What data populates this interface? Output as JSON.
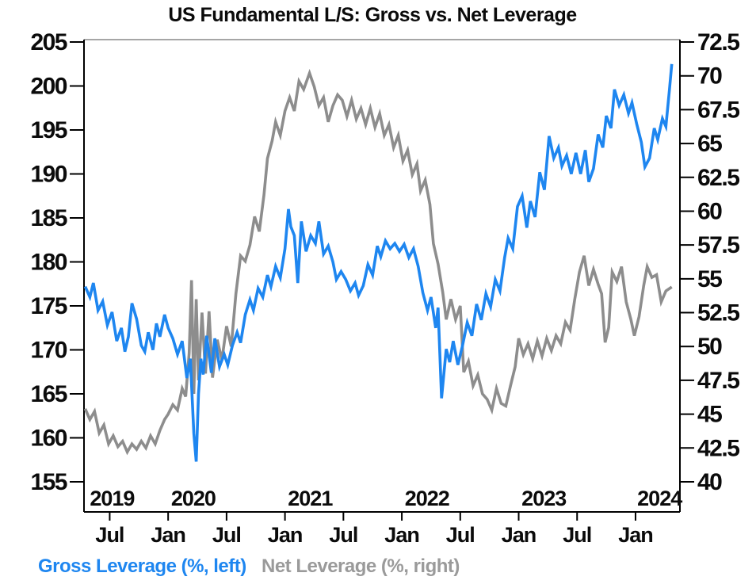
{
  "chart_data": {
    "type": "line",
    "title": "US Fundamental L/S: Gross vs. Net Leverage",
    "grid": false,
    "legend_position": "bottom-left",
    "x_range_years": [
      2019.28,
      2024.38
    ],
    "left_axis": {
      "side": "left",
      "min": 155,
      "max": 205,
      "tick_values": [
        205,
        200,
        195,
        190,
        185,
        180,
        175,
        170,
        165,
        160,
        155
      ],
      "tick_labels": [
        "205",
        "200",
        "195",
        "190",
        "185",
        "180",
        "175",
        "170",
        "165",
        "160",
        "155"
      ]
    },
    "right_axis": {
      "side": "right",
      "min": 40,
      "max": 72.5,
      "tick_values": [
        72.5,
        70,
        67.5,
        65,
        62.5,
        60,
        57.5,
        55,
        52.5,
        50,
        47.5,
        45,
        42.5,
        40
      ],
      "tick_labels": [
        "72.5",
        "70",
        "67.5",
        "65",
        "62.5",
        "60",
        "57.5",
        "55",
        "52.5",
        "50",
        "47.5",
        "45",
        "42.5",
        "40"
      ]
    },
    "x_axis": {
      "month_tick_values": [
        2019.5,
        2020.0,
        2020.5,
        2021.0,
        2021.5,
        2022.0,
        2022.5,
        2023.0,
        2023.5,
        2024.0
      ],
      "month_tick_labels": [
        "Jul",
        "Jan",
        "Jul",
        "Jan",
        "Jul",
        "Jan",
        "Jul",
        "Jan",
        "Jul",
        "Jan"
      ],
      "year_label_positions": [
        2019.52,
        2020.215,
        2021.215,
        2022.215,
        2023.215,
        2024.205
      ],
      "year_labels": [
        "2019",
        "2020",
        "2021",
        "2022",
        "2023",
        "2024"
      ]
    },
    "colors": {
      "gross": "#1e86f0",
      "net": "#8d8d8d",
      "legend_net_text": "#9a9a9a",
      "axis": "#000000",
      "top_border": "#888888"
    },
    "series": [
      {
        "name": "Gross Leverage (%, left)",
        "axis": "left",
        "color": "#1e86f0",
        "points": [
          [
            2019.29,
            177.2
          ],
          [
            2019.33,
            176.0
          ],
          [
            2019.36,
            177.6
          ],
          [
            2019.4,
            174.5
          ],
          [
            2019.44,
            175.5
          ],
          [
            2019.48,
            172.8
          ],
          [
            2019.52,
            174.3
          ],
          [
            2019.56,
            171.0
          ],
          [
            2019.6,
            172.5
          ],
          [
            2019.63,
            169.8
          ],
          [
            2019.66,
            171.5
          ],
          [
            2019.69,
            175.3
          ],
          [
            2019.73,
            173.5
          ],
          [
            2019.77,
            170.5
          ],
          [
            2019.8,
            169.8
          ],
          [
            2019.83,
            172.0
          ],
          [
            2019.87,
            170.0
          ],
          [
            2019.9,
            173.0
          ],
          [
            2019.93,
            171.5
          ],
          [
            2019.97,
            174.0
          ],
          [
            2020.0,
            172.5
          ],
          [
            2020.04,
            171.3
          ],
          [
            2020.08,
            169.5
          ],
          [
            2020.12,
            171.0
          ],
          [
            2020.16,
            166.8
          ],
          [
            2020.19,
            169.0
          ],
          [
            2020.22,
            160.5
          ],
          [
            2020.24,
            157.3
          ],
          [
            2020.26,
            165.0
          ],
          [
            2020.28,
            169.0
          ],
          [
            2020.3,
            167.2
          ],
          [
            2020.33,
            171.6
          ],
          [
            2020.37,
            167.4
          ],
          [
            2020.4,
            171.3
          ],
          [
            2020.44,
            168.1
          ],
          [
            2020.48,
            169.5
          ],
          [
            2020.51,
            168.3
          ],
          [
            2020.55,
            170.5
          ],
          [
            2020.59,
            172.0
          ],
          [
            2020.62,
            170.8
          ],
          [
            2020.66,
            174.0
          ],
          [
            2020.7,
            175.7
          ],
          [
            2020.73,
            174.5
          ],
          [
            2020.77,
            177.0
          ],
          [
            2020.81,
            176.0
          ],
          [
            2020.85,
            178.5
          ],
          [
            2020.88,
            177.2
          ],
          [
            2020.92,
            179.5
          ],
          [
            2020.96,
            178.2
          ],
          [
            2021.0,
            181.5
          ],
          [
            2021.03,
            186.0
          ],
          [
            2021.05,
            184.0
          ],
          [
            2021.08,
            183.0
          ],
          [
            2021.11,
            177.6
          ],
          [
            2021.14,
            184.6
          ],
          [
            2021.18,
            181.2
          ],
          [
            2021.22,
            183.0
          ],
          [
            2021.26,
            182.1
          ],
          [
            2021.29,
            184.6
          ],
          [
            2021.33,
            180.9
          ],
          [
            2021.37,
            181.8
          ],
          [
            2021.41,
            180.0
          ],
          [
            2021.44,
            178.0
          ],
          [
            2021.48,
            178.9
          ],
          [
            2021.52,
            178.0
          ],
          [
            2021.56,
            176.7
          ],
          [
            2021.6,
            177.6
          ],
          [
            2021.63,
            176.2
          ],
          [
            2021.67,
            177.3
          ],
          [
            2021.71,
            179.7
          ],
          [
            2021.75,
            178.5
          ],
          [
            2021.79,
            181.8
          ],
          [
            2021.82,
            180.6
          ],
          [
            2021.86,
            182.4
          ],
          [
            2021.9,
            181.5
          ],
          [
            2021.94,
            182.1
          ],
          [
            2021.98,
            181.2
          ],
          [
            2022.02,
            182.0
          ],
          [
            2022.06,
            180.5
          ],
          [
            2022.1,
            181.5
          ],
          [
            2022.14,
            179.5
          ],
          [
            2022.18,
            176.5
          ],
          [
            2022.22,
            174.5
          ],
          [
            2022.25,
            176.0
          ],
          [
            2022.29,
            172.5
          ],
          [
            2022.31,
            174.8
          ],
          [
            2022.34,
            164.5
          ],
          [
            2022.38,
            170.1
          ],
          [
            2022.41,
            168.6
          ],
          [
            2022.44,
            171.0
          ],
          [
            2022.48,
            168.3
          ],
          [
            2022.52,
            170.5
          ],
          [
            2022.56,
            173.1
          ],
          [
            2022.6,
            171.6
          ],
          [
            2022.64,
            175.2
          ],
          [
            2022.68,
            173.4
          ],
          [
            2022.72,
            176.4
          ],
          [
            2022.76,
            174.9
          ],
          [
            2022.8,
            178.0
          ],
          [
            2022.84,
            176.7
          ],
          [
            2022.88,
            180.5
          ],
          [
            2022.91,
            182.7
          ],
          [
            2022.95,
            181.5
          ],
          [
            2022.99,
            186.3
          ],
          [
            2023.03,
            187.5
          ],
          [
            2023.07,
            183.9
          ],
          [
            2023.1,
            186.9
          ],
          [
            2023.14,
            185.1
          ],
          [
            2023.18,
            190.2
          ],
          [
            2023.22,
            188.2
          ],
          [
            2023.26,
            194.3
          ],
          [
            2023.3,
            191.8
          ],
          [
            2023.34,
            193.0
          ],
          [
            2023.37,
            190.9
          ],
          [
            2023.41,
            192.1
          ],
          [
            2023.45,
            190.0
          ],
          [
            2023.49,
            192.4
          ],
          [
            2023.53,
            190.0
          ],
          [
            2023.57,
            192.7
          ],
          [
            2023.6,
            189.1
          ],
          [
            2023.64,
            190.6
          ],
          [
            2023.68,
            194.5
          ],
          [
            2023.72,
            193.0
          ],
          [
            2023.75,
            196.6
          ],
          [
            2023.79,
            195.2
          ],
          [
            2023.82,
            199.6
          ],
          [
            2023.86,
            197.8
          ],
          [
            2023.9,
            199.0
          ],
          [
            2023.94,
            196.9
          ],
          [
            2023.97,
            198.1
          ],
          [
            2024.01,
            195.7
          ],
          [
            2024.05,
            193.6
          ],
          [
            2024.08,
            190.8
          ],
          [
            2024.12,
            191.8
          ],
          [
            2024.16,
            195.2
          ],
          [
            2024.19,
            193.9
          ],
          [
            2024.23,
            196.3
          ],
          [
            2024.26,
            195.4
          ],
          [
            2024.29,
            199.5
          ],
          [
            2024.31,
            202.5
          ]
        ]
      },
      {
        "name": "Net Leverage (%, right)",
        "axis": "right",
        "color": "#8d8d8d",
        "points": [
          [
            2019.29,
            45.4
          ],
          [
            2019.33,
            44.6
          ],
          [
            2019.37,
            45.2
          ],
          [
            2019.41,
            43.6
          ],
          [
            2019.45,
            44.2
          ],
          [
            2019.49,
            42.8
          ],
          [
            2019.53,
            43.4
          ],
          [
            2019.57,
            42.6
          ],
          [
            2019.61,
            43.0
          ],
          [
            2019.65,
            42.2
          ],
          [
            2019.69,
            42.8
          ],
          [
            2019.73,
            42.4
          ],
          [
            2019.77,
            43.0
          ],
          [
            2019.81,
            42.5
          ],
          [
            2019.85,
            43.4
          ],
          [
            2019.89,
            42.8
          ],
          [
            2019.93,
            43.8
          ],
          [
            2019.97,
            44.6
          ],
          [
            2020.0,
            45.0
          ],
          [
            2020.04,
            45.7
          ],
          [
            2020.08,
            45.3
          ],
          [
            2020.12,
            46.9
          ],
          [
            2020.15,
            46.3
          ],
          [
            2020.18,
            49.5
          ],
          [
            2020.2,
            54.9
          ],
          [
            2020.22,
            46.5
          ],
          [
            2020.24,
            53.5
          ],
          [
            2020.26,
            47.5
          ],
          [
            2020.29,
            52.5
          ],
          [
            2020.32,
            48.0
          ],
          [
            2020.35,
            52.6
          ],
          [
            2020.38,
            47.7
          ],
          [
            2020.42,
            50.5
          ],
          [
            2020.46,
            49.0
          ],
          [
            2020.5,
            51.5
          ],
          [
            2020.54,
            50.0
          ],
          [
            2020.58,
            53.9
          ],
          [
            2020.62,
            56.7
          ],
          [
            2020.66,
            56.3
          ],
          [
            2020.7,
            57.5
          ],
          [
            2020.74,
            59.6
          ],
          [
            2020.78,
            58.5
          ],
          [
            2020.82,
            61.2
          ],
          [
            2020.85,
            63.9
          ],
          [
            2020.89,
            65.2
          ],
          [
            2020.92,
            66.6
          ],
          [
            2020.96,
            65.6
          ],
          [
            2021.0,
            67.4
          ],
          [
            2021.04,
            68.4
          ],
          [
            2021.08,
            67.4
          ],
          [
            2021.12,
            69.6
          ],
          [
            2021.16,
            69.0
          ],
          [
            2021.21,
            70.2
          ],
          [
            2021.25,
            69.2
          ],
          [
            2021.29,
            67.8
          ],
          [
            2021.33,
            68.4
          ],
          [
            2021.37,
            66.6
          ],
          [
            2021.41,
            67.8
          ],
          [
            2021.45,
            68.6
          ],
          [
            2021.49,
            68.2
          ],
          [
            2021.53,
            67.0
          ],
          [
            2021.57,
            68.2
          ],
          [
            2021.61,
            66.8
          ],
          [
            2021.65,
            67.6
          ],
          [
            2021.69,
            66.4
          ],
          [
            2021.73,
            67.6
          ],
          [
            2021.77,
            66.2
          ],
          [
            2021.81,
            67.2
          ],
          [
            2021.85,
            65.6
          ],
          [
            2021.89,
            66.4
          ],
          [
            2021.93,
            64.7
          ],
          [
            2021.97,
            65.6
          ],
          [
            2022.01,
            63.7
          ],
          [
            2022.05,
            64.5
          ],
          [
            2022.09,
            62.7
          ],
          [
            2022.13,
            63.5
          ],
          [
            2022.16,
            61.5
          ],
          [
            2022.2,
            62.3
          ],
          [
            2022.24,
            60.5
          ],
          [
            2022.27,
            57.6
          ],
          [
            2022.31,
            56.1
          ],
          [
            2022.35,
            54.0
          ],
          [
            2022.38,
            52.0
          ],
          [
            2022.42,
            53.5
          ],
          [
            2022.46,
            52.0
          ],
          [
            2022.5,
            53.0
          ],
          [
            2022.53,
            48.1
          ],
          [
            2022.57,
            48.9
          ],
          [
            2022.61,
            47.1
          ],
          [
            2022.65,
            47.9
          ],
          [
            2022.69,
            46.5
          ],
          [
            2022.73,
            46.1
          ],
          [
            2022.77,
            45.3
          ],
          [
            2022.81,
            46.9
          ],
          [
            2022.85,
            45.8
          ],
          [
            2022.89,
            45.6
          ],
          [
            2022.93,
            47.1
          ],
          [
            2022.97,
            48.5
          ],
          [
            2023.0,
            50.6
          ],
          [
            2023.04,
            49.4
          ],
          [
            2023.08,
            50.2
          ],
          [
            2023.12,
            49.1
          ],
          [
            2023.16,
            50.4
          ],
          [
            2023.2,
            49.3
          ],
          [
            2023.24,
            50.6
          ],
          [
            2023.28,
            49.7
          ],
          [
            2023.32,
            50.8
          ],
          [
            2023.36,
            50.2
          ],
          [
            2023.4,
            51.8
          ],
          [
            2023.44,
            51.2
          ],
          [
            2023.48,
            53.5
          ],
          [
            2023.52,
            55.5
          ],
          [
            2023.56,
            56.7
          ],
          [
            2023.6,
            54.5
          ],
          [
            2023.64,
            55.7
          ],
          [
            2023.68,
            54.6
          ],
          [
            2023.71,
            53.9
          ],
          [
            2023.74,
            50.3
          ],
          [
            2023.77,
            51.4
          ],
          [
            2023.8,
            55.5
          ],
          [
            2023.84,
            54.8
          ],
          [
            2023.88,
            55.9
          ],
          [
            2023.92,
            53.3
          ],
          [
            2023.96,
            52.0
          ],
          [
            2023.99,
            50.8
          ],
          [
            2024.03,
            52.2
          ],
          [
            2024.07,
            54.5
          ],
          [
            2024.1,
            55.9
          ],
          [
            2024.14,
            55.1
          ],
          [
            2024.18,
            55.3
          ],
          [
            2024.22,
            53.3
          ],
          [
            2024.26,
            54.1
          ],
          [
            2024.31,
            54.4
          ]
        ]
      }
    ]
  }
}
